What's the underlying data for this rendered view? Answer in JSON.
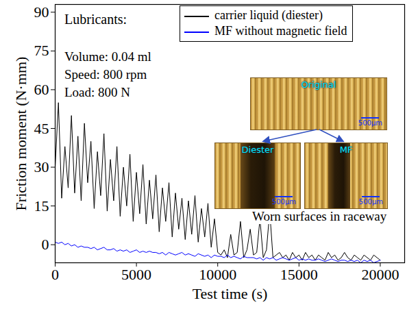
{
  "chart_data": {
    "type": "line",
    "x_label": "Test time (s)",
    "y_label": "Friction moment (N·mm)",
    "xlim": [
      0,
      21500
    ],
    "xticks": [
      0,
      5000,
      10000,
      15000,
      20000
    ],
    "ylim": [
      -7,
      93
    ],
    "yticks": [
      0,
      15,
      30,
      45,
      60,
      75,
      90
    ],
    "legend": "top",
    "legend_title": "Lubricants:",
    "annotations": [
      "Volume: 0.04 ml",
      "Speed: 800 rpm",
      "Load: 800 N"
    ],
    "insets": [
      {
        "label": "Original",
        "scale_bar": "500μm"
      },
      {
        "label": "Diester",
        "scale_bar": "500μm"
      },
      {
        "label": "MF",
        "scale_bar": "500μm"
      }
    ],
    "inset_caption": "Worn surfaces in raceway",
    "x": [
      0,
      200,
      400,
      600,
      800,
      1000,
      1200,
      1400,
      1600,
      1800,
      2000,
      2200,
      2400,
      2600,
      2800,
      3000,
      3200,
      3400,
      3600,
      3800,
      4000,
      4200,
      4400,
      4600,
      4800,
      5000,
      5200,
      5400,
      5600,
      5800,
      6000,
      6200,
      6400,
      6600,
      6800,
      7000,
      7200,
      7400,
      7600,
      7800,
      8000,
      8200,
      8400,
      8600,
      8800,
      9000,
      9200,
      9400,
      9600,
      9800,
      10000,
      10200,
      10400,
      10600,
      10800,
      11000,
      11200,
      11400,
      11600,
      11800,
      12000,
      12200,
      12400,
      12600,
      12800,
      13000,
      13200,
      13400,
      13600,
      13800,
      14000,
      14200,
      14400,
      14600,
      14800,
      15000,
      15200,
      15400,
      15600,
      15800,
      16000,
      16200,
      16400,
      16600,
      16800,
      17000,
      17200,
      17400,
      17600,
      17800,
      18000,
      18200,
      18400,
      18600,
      18800,
      19000,
      19200,
      19400,
      19600,
      19800,
      20000
    ],
    "series": [
      {
        "name": "carrier liquid (diester)",
        "color": "#000000",
        "values": [
          30,
          55,
          18,
          38,
          22,
          50,
          20,
          42,
          17,
          47,
          24,
          40,
          14,
          36,
          19,
          43,
          13,
          33,
          17,
          38,
          11,
          30,
          15,
          35,
          9,
          28,
          12,
          31,
          8,
          25,
          10,
          27,
          5,
          22,
          9,
          24,
          3,
          20,
          6,
          18,
          2,
          17,
          4,
          19,
          1,
          14,
          3,
          16,
          -1,
          10,
          -3,
          -4,
          -2,
          -5,
          4,
          -4,
          -3,
          9,
          -5,
          -2,
          6,
          -4,
          -3,
          10,
          -5,
          -2,
          13,
          -5,
          -4,
          -3,
          -5,
          -4,
          -6,
          -3,
          -5,
          -4,
          -6,
          -3,
          -5,
          -4,
          -6,
          -4,
          -5,
          -6,
          -3,
          -5,
          -4,
          -6,
          -5,
          -3,
          -5,
          -6,
          -4,
          -5,
          -6,
          -4,
          -5,
          -6,
          -4,
          -5,
          -6
        ]
      },
      {
        "name": "MF without magnetic field",
        "color": "#0000ff",
        "values": [
          1,
          0.5,
          1,
          0,
          0.5,
          -0.5,
          0,
          -1,
          -0.5,
          -1,
          -1,
          -1.5,
          -1,
          -2,
          -1.5,
          -1,
          -2,
          -2,
          -1.5,
          -2.5,
          -2,
          -2.5,
          -2,
          -3,
          -2.5,
          -2,
          -3,
          -2.5,
          -3,
          -2.5,
          -3,
          -3,
          -3.5,
          -3,
          -4,
          -3,
          -3.5,
          -4,
          -3.5,
          -3,
          -4,
          -3.5,
          -4,
          -4.5,
          -3.5,
          -4,
          -4.5,
          -4,
          -5,
          -4,
          -4.5,
          -4.5,
          -5,
          -4,
          -5,
          -4.5,
          -5,
          -5.5,
          -4.5,
          -5,
          -5,
          -5,
          -5.5,
          -5,
          -6,
          -5,
          -5.5,
          -5,
          -6,
          -5.5,
          -5,
          -5.5,
          -6,
          -5.5,
          -5,
          -6,
          -5.5,
          -6,
          -5.5,
          -6,
          -6,
          -5.5,
          -6,
          -6.5,
          -6,
          -5.5,
          -6,
          -6.5,
          -6,
          -6,
          -6.5,
          -6,
          -6.5,
          -6,
          -7,
          -6,
          -6.5,
          -6,
          -7,
          -6.5,
          -6
        ]
      }
    ]
  }
}
